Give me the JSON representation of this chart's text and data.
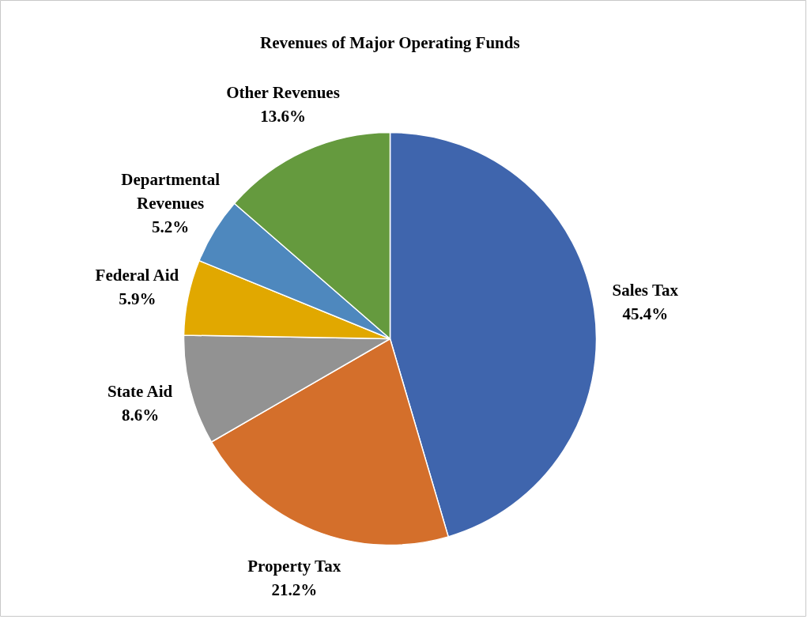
{
  "chart_data": {
    "type": "pie",
    "title": "Revenues of Major Operating Funds",
    "categories": [
      "Sales Tax",
      "Property Tax",
      "State Aid",
      "Federal Aid",
      "Departmental Revenues",
      "Other Revenues"
    ],
    "values": [
      45.4,
      21.2,
      8.6,
      5.9,
      5.2,
      13.6
    ],
    "colors": [
      "#3f65ad",
      "#d46f2b",
      "#929292",
      "#e1a800",
      "#4e88be",
      "#659a3e"
    ],
    "value_labels": [
      "45.4%",
      "21.2%",
      "8.6%",
      "5.9%",
      "5.2%",
      "13.6%"
    ]
  }
}
